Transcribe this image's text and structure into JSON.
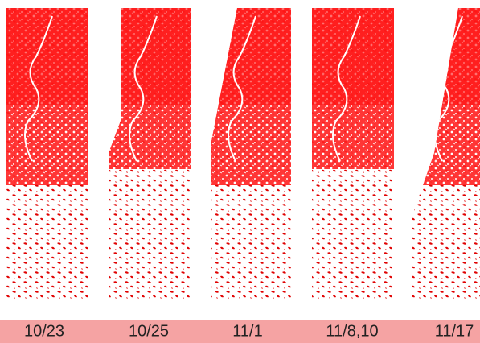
{
  "panels": [
    {
      "label": "10/23"
    },
    {
      "label": "10/25"
    },
    {
      "label": "11/1"
    },
    {
      "label": "11/8,10"
    },
    {
      "label": "11/17"
    }
  ]
}
